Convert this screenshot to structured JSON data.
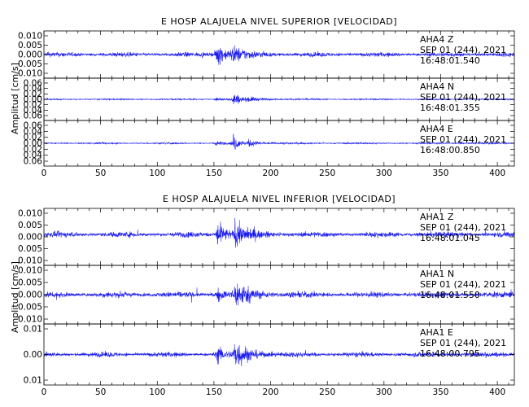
{
  "chart_data": [
    {
      "type": "line",
      "title": "E HOSP ALAJUELA NIVEL SUPERIOR [VELOCIDAD]",
      "ylabel": "Amplitud [cm/s]",
      "xlim": [
        0,
        415
      ],
      "x_ticks": [
        "0",
        "50",
        "100",
        "150",
        "200",
        "250",
        "300",
        "350",
        "400"
      ],
      "color": "#1a1aee",
      "traces": [
        {
          "id": "upper-z",
          "station": "AHA4",
          "component": "Z",
          "date": "SEP 01 (244), 2021",
          "time": "16:48:01.540",
          "ylim": [
            -0.012,
            0.012
          ],
          "y_ticks": [
            "0.010",
            "0.005",
            "0.000",
            "0.005",
            "0.010"
          ],
          "bg": 0.0016,
          "quake": [
            {
              "t": 152,
              "a": 0.0105,
              "d": 18
            },
            {
              "t": 166,
              "a": 0.006,
              "d": 25
            }
          ]
        },
        {
          "id": "upper-n",
          "station": "AHA4",
          "component": "N",
          "date": "SEP 01 (244), 2021",
          "time": "16:48:01.355",
          "ylim": [
            -0.07,
            0.07
          ],
          "y_ticks": [
            "0.06",
            "0.04",
            "0.02",
            "0.00",
            "0.02",
            "0.04",
            "0.06"
          ],
          "bg": 0.0035,
          "quake": [
            {
              "t": 152,
              "a": 0.01,
              "d": 10
            },
            {
              "t": 167,
              "a": 0.045,
              "d": 12
            },
            {
              "t": 180,
              "a": 0.012,
              "d": 25
            }
          ]
        },
        {
          "id": "upper-e",
          "station": "AHA4",
          "component": "E",
          "date": "SEP 01 (244), 2021",
          "time": "16:48:00.850",
          "ylim": [
            -0.07,
            0.07
          ],
          "y_ticks": [
            "0.06",
            "0.04",
            "0.02",
            "0.00",
            "0.02",
            "0.04",
            "0.06"
          ],
          "bg": 0.0035,
          "quake": [
            {
              "t": 152,
              "a": 0.012,
              "d": 10
            },
            {
              "t": 167,
              "a": 0.045,
              "d": 12
            },
            {
              "t": 180,
              "a": 0.014,
              "d": 25
            }
          ]
        }
      ]
    },
    {
      "type": "line",
      "title": "E HOSP ALAJUELA NIVEL INFERIOR [VELOCIDAD]",
      "ylabel": "Amplitud [cm/s]",
      "xlim": [
        0,
        415
      ],
      "x_ticks": [
        "0",
        "50",
        "100",
        "150",
        "200",
        "250",
        "300",
        "350",
        "400"
      ],
      "color": "#1a1aee",
      "traces": [
        {
          "id": "lower-z",
          "station": "AHA1",
          "component": "Z",
          "date": "SEP 01 (244), 2021",
          "time": "16:48:01.045",
          "ylim": [
            -0.013,
            0.011
          ],
          "y_ticks": [
            "0.010",
            "0.005",
            "0.000",
            "0.005",
            "0.010"
          ],
          "bg": 0.0016,
          "quake": [
            {
              "t": 153,
              "a": 0.011,
              "d": 14
            },
            {
              "t": 168,
              "a": 0.0075,
              "d": 25
            }
          ]
        },
        {
          "id": "lower-n",
          "station": "AHA1",
          "component": "N",
          "date": "SEP 01 (244), 2021",
          "time": "16:48:01.550",
          "ylim": [
            -0.013,
            0.013
          ],
          "y_ticks": [
            "0.010",
            "0.005",
            "0.000",
            "0.005",
            "0.010"
          ],
          "bg": 0.0018,
          "quake": [
            {
              "t": 153,
              "a": 0.005,
              "d": 10
            },
            {
              "t": 168,
              "a": 0.01,
              "d": 28
            }
          ]
        },
        {
          "id": "lower-e",
          "station": "AHA1",
          "component": "E",
          "date": "SEP 01 (244), 2021",
          "time": "16:48:00.795",
          "ylim": [
            -0.016,
            0.016
          ],
          "y_ticks": [
            "0.01",
            "0.00",
            "0.01"
          ],
          "bg": 0.0018,
          "quake": [
            {
              "t": 153,
              "a": 0.008,
              "d": 10
            },
            {
              "t": 168,
              "a": 0.013,
              "d": 26
            }
          ]
        }
      ]
    }
  ]
}
